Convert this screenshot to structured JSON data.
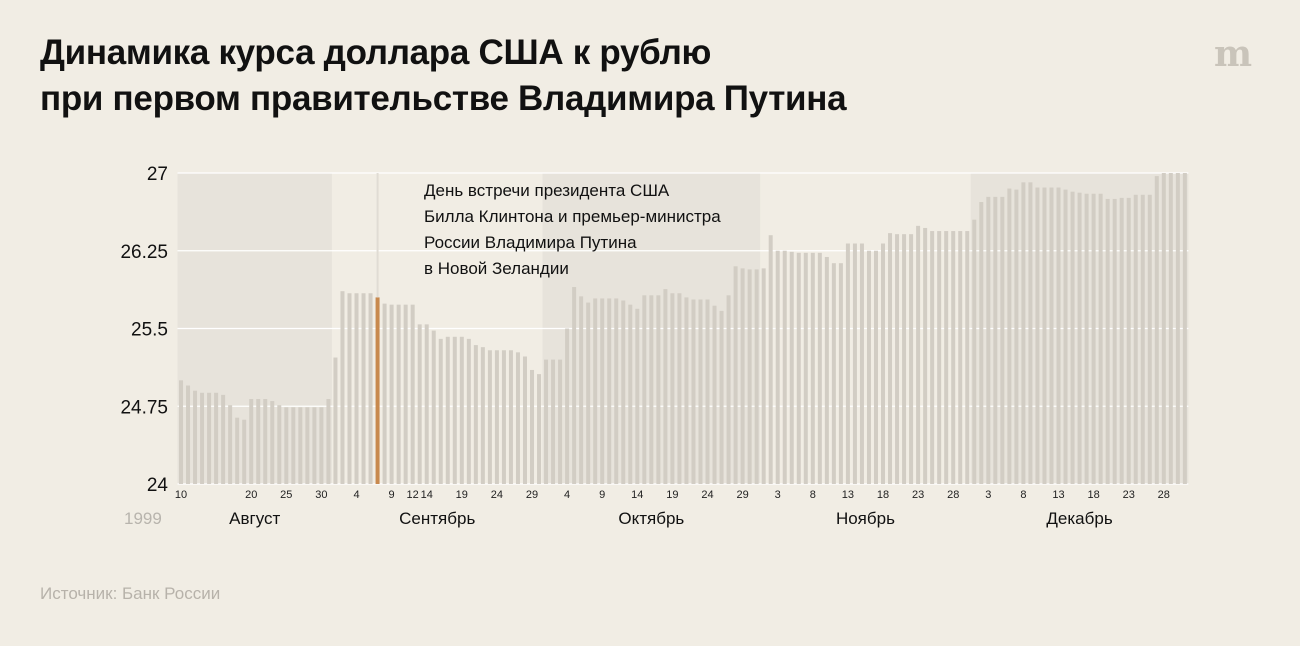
{
  "header": {
    "title_line1": "Динамика курса доллара США к рублю",
    "title_line2": "при первом правительстве Владимира Путина",
    "logo": "m",
    "logo_icon": "meduza-logo-icon"
  },
  "footer": {
    "source": "Источник: Банк России"
  },
  "colors": {
    "background": "#f1ede4",
    "bar": "#d2cdc4",
    "highlight": "#c8894e",
    "month_band": "#e7e3db",
    "year_label": "#b8b4ad"
  },
  "chart_data": {
    "type": "bar",
    "title": "Динамика курса доллара США к рублю при первом правительстве Владимира Путина",
    "xlabel": "",
    "ylabel": "",
    "ylim": [
      24,
      27
    ],
    "yticks": [
      "27",
      "26.25",
      "25.5",
      "24.75",
      "24"
    ],
    "year_label": "1999",
    "grid": true,
    "highlight_index": 28,
    "annotation": [
      "День встречи президента США",
      "Билла Клинтона и премьер-министра",
      "России Владимира Путина",
      "в Новой Зеландии"
    ],
    "months": [
      {
        "label": "Август",
        "start": 0,
        "end": 21,
        "shaded": true
      },
      {
        "label": "Сентябрь",
        "start": 22,
        "end": 51,
        "shaded": false
      },
      {
        "label": "Октябрь",
        "start": 52,
        "end": 82,
        "shaded": true
      },
      {
        "label": "Ноябрь",
        "start": 83,
        "end": 112,
        "shaded": false
      },
      {
        "label": "Декабрь",
        "start": 113,
        "end": 143,
        "shaded": true
      }
    ],
    "tick_labels": [
      {
        "i": 0,
        "label": "10"
      },
      {
        "i": 10,
        "label": "20"
      },
      {
        "i": 15,
        "label": "25"
      },
      {
        "i": 20,
        "label": "30"
      },
      {
        "i": 25,
        "label": "4"
      },
      {
        "i": 30,
        "label": "9"
      },
      {
        "i": 33,
        "label": "12"
      },
      {
        "i": 35,
        "label": "14"
      },
      {
        "i": 40,
        "label": "19"
      },
      {
        "i": 45,
        "label": "24"
      },
      {
        "i": 50,
        "label": "29"
      },
      {
        "i": 55,
        "label": "4"
      },
      {
        "i": 60,
        "label": "9"
      },
      {
        "i": 65,
        "label": "14"
      },
      {
        "i": 70,
        "label": "19"
      },
      {
        "i": 75,
        "label": "24"
      },
      {
        "i": 80,
        "label": "29"
      },
      {
        "i": 85,
        "label": "3"
      },
      {
        "i": 90,
        "label": "8"
      },
      {
        "i": 95,
        "label": "13"
      },
      {
        "i": 100,
        "label": "18"
      },
      {
        "i": 105,
        "label": "23"
      },
      {
        "i": 110,
        "label": "28"
      },
      {
        "i": 115,
        "label": "3"
      },
      {
        "i": 120,
        "label": "8"
      },
      {
        "i": 125,
        "label": "13"
      },
      {
        "i": 130,
        "label": "18"
      },
      {
        "i": 135,
        "label": "23"
      },
      {
        "i": 140,
        "label": "28"
      }
    ],
    "values": [
      25.0,
      24.95,
      24.9,
      24.88,
      24.88,
      24.88,
      24.86,
      24.76,
      24.64,
      24.62,
      24.82,
      24.82,
      24.82,
      24.8,
      24.76,
      24.74,
      24.74,
      24.74,
      24.74,
      24.74,
      24.74,
      24.82,
      25.22,
      25.86,
      25.84,
      25.84,
      25.84,
      25.84,
      25.8,
      25.74,
      25.73,
      25.73,
      25.73,
      25.73,
      25.54,
      25.54,
      25.48,
      25.4,
      25.42,
      25.42,
      25.42,
      25.4,
      25.34,
      25.32,
      25.29,
      25.29,
      25.29,
      25.29,
      25.27,
      25.23,
      25.1,
      25.06,
      25.2,
      25.2,
      25.2,
      25.5,
      25.9,
      25.81,
      25.75,
      25.79,
      25.79,
      25.79,
      25.79,
      25.77,
      25.73,
      25.69,
      25.82,
      25.82,
      25.82,
      25.88,
      25.84,
      25.84,
      25.8,
      25.78,
      25.78,
      25.78,
      25.72,
      25.67,
      25.82,
      26.1,
      26.08,
      26.07,
      26.07,
      26.08,
      26.4,
      26.25,
      26.25,
      26.24,
      26.23,
      26.23,
      26.23,
      26.23,
      26.19,
      26.13,
      26.13,
      26.32,
      26.32,
      26.32,
      26.25,
      26.25,
      26.32,
      26.42,
      26.41,
      26.41,
      26.41,
      26.49,
      26.47,
      26.44,
      26.44,
      26.44,
      26.44,
      26.44,
      26.44,
      26.55,
      26.72,
      26.77,
      26.77,
      26.77,
      26.85,
      26.84,
      26.91,
      26.91,
      26.86,
      26.86,
      26.86,
      26.86,
      26.84,
      26.82,
      26.81,
      26.8,
      26.8,
      26.8,
      26.75,
      26.75,
      26.76,
      26.76,
      26.79,
      26.79,
      26.79,
      26.97,
      27.0,
      27.0,
      27.0,
      27.0
    ]
  }
}
